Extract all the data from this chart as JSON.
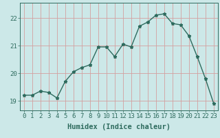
{
  "x": [
    0,
    1,
    2,
    3,
    4,
    5,
    6,
    7,
    8,
    9,
    10,
    11,
    12,
    13,
    14,
    15,
    16,
    17,
    18,
    19,
    20,
    21,
    22,
    23
  ],
  "y": [
    19.2,
    19.2,
    19.35,
    19.3,
    19.1,
    19.7,
    20.05,
    20.2,
    20.3,
    20.95,
    20.95,
    20.6,
    21.05,
    20.95,
    21.7,
    21.85,
    22.1,
    22.15,
    21.8,
    21.75,
    21.35,
    20.6,
    19.8,
    18.9
  ],
  "line_color": "#2e6b5e",
  "marker": "*",
  "marker_size": 3.5,
  "bg_color": "#cce8e8",
  "grid_color": "#d4a0a0",
  "xlabel": "Humidex (Indice chaleur)",
  "ylabel_ticks": [
    19,
    20,
    21,
    22
  ],
  "xlim": [
    -0.5,
    23.5
  ],
  "ylim": [
    18.65,
    22.55
  ],
  "axis_fontsize": 7.5,
  "tick_fontsize": 6.5
}
